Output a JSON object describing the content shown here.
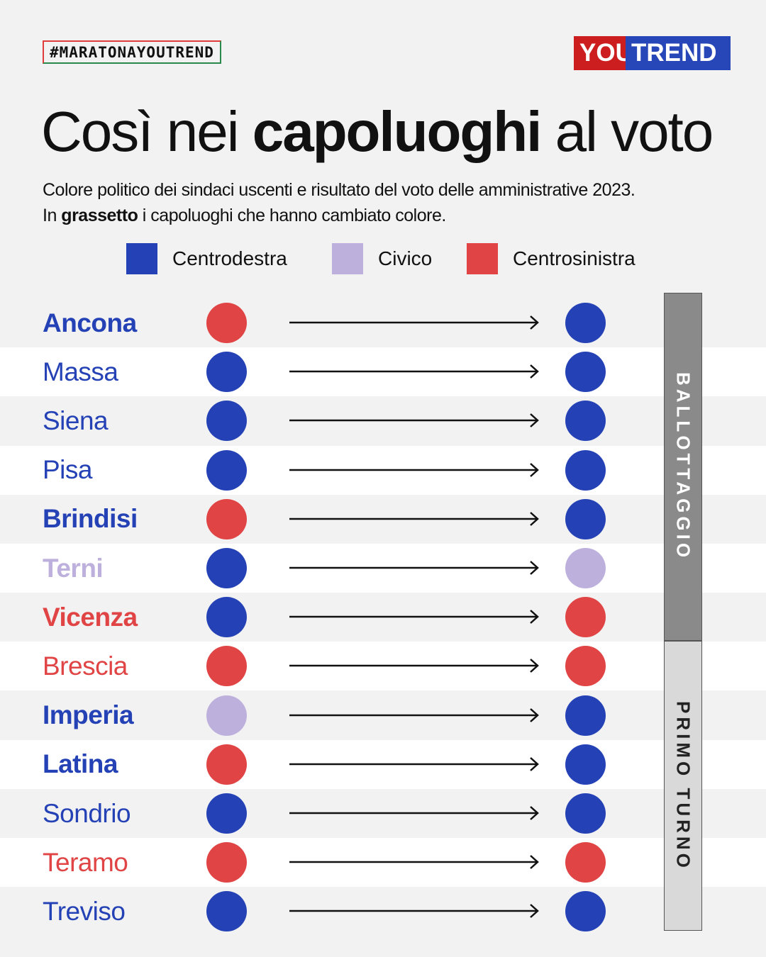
{
  "hashtag": "#MARATONAYOUTREND",
  "logo": {
    "part1": "YOU",
    "part2": "TREND"
  },
  "title": {
    "pre": "Così nei ",
    "bold": "capoluoghi",
    "post": " al voto"
  },
  "subtitle": {
    "line1": "Colore politico dei sindaci uscenti e risultato del voto delle amministrative 2023.",
    "line2_pre": "In ",
    "line2_bold": "grassetto",
    "line2_post": " i capoluoghi che hanno cambiato colore."
  },
  "colors": {
    "centrodestra": "#2442b5",
    "civico": "#bdb0dd",
    "centrosinistra": "#e04444"
  },
  "legend": [
    {
      "label": "Centrodestra",
      "color": "centrodestra"
    },
    {
      "label": "Civico",
      "color": "civico"
    },
    {
      "label": "Centrosinistra",
      "color": "centrosinistra"
    }
  ],
  "groups": {
    "ballottaggio": "BALLOTTAGGIO",
    "primo_turno": "PRIMO TURNO"
  },
  "cities": [
    {
      "name": "Ancona",
      "from": "centrosinistra",
      "to": "centrodestra",
      "changed": true
    },
    {
      "name": "Massa",
      "from": "centrodestra",
      "to": "centrodestra",
      "changed": false
    },
    {
      "name": "Siena",
      "from": "centrodestra",
      "to": "centrodestra",
      "changed": false
    },
    {
      "name": "Pisa",
      "from": "centrodestra",
      "to": "centrodestra",
      "changed": false
    },
    {
      "name": "Brindisi",
      "from": "centrosinistra",
      "to": "centrodestra",
      "changed": true
    },
    {
      "name": "Terni",
      "from": "centrodestra",
      "to": "civico",
      "changed": true
    },
    {
      "name": "Vicenza",
      "from": "centrodestra",
      "to": "centrosinistra",
      "changed": true
    },
    {
      "name": "Brescia",
      "from": "centrosinistra",
      "to": "centrosinistra",
      "changed": false
    },
    {
      "name": "Imperia",
      "from": "civico",
      "to": "centrodestra",
      "changed": true
    },
    {
      "name": "Latina",
      "from": "centrosinistra",
      "to": "centrodestra",
      "changed": true
    },
    {
      "name": "Sondrio",
      "from": "centrodestra",
      "to": "centrodestra",
      "changed": false
    },
    {
      "name": "Teramo",
      "from": "centrosinistra",
      "to": "centrosinistra",
      "changed": false
    },
    {
      "name": "Treviso",
      "from": "centrodestra",
      "to": "centrodestra",
      "changed": false
    }
  ]
}
